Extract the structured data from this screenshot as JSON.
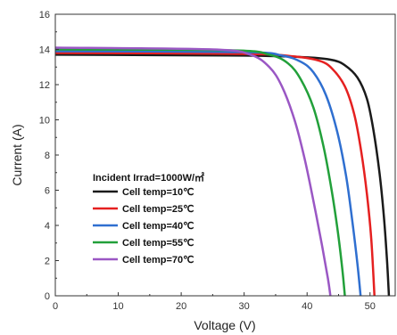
{
  "chart_data": {
    "type": "line",
    "title": "",
    "xlabel": "Voltage (V)",
    "ylabel": "Current (A)",
    "xlim": [
      0,
      54
    ],
    "ylim": [
      0,
      16
    ],
    "xticks": [
      "0",
      "10",
      "20",
      "30",
      "40",
      "50"
    ],
    "yticks": [
      "0",
      "2",
      "4",
      "6",
      "8",
      "10",
      "12",
      "14",
      "16"
    ],
    "legend_title": "Incident Irrad=1000W/㎡",
    "legend_position": "center-left",
    "grid": false,
    "series": [
      {
        "name": "Cell temp=10℃",
        "color": "#1a1a1a",
        "points": [
          [
            0,
            13.7
          ],
          [
            30,
            13.65
          ],
          [
            40,
            13.55
          ],
          [
            44,
            13.4
          ],
          [
            46,
            13.1
          ],
          [
            48,
            12.4
          ],
          [
            49.5,
            11.2
          ],
          [
            50.5,
            9.5
          ],
          [
            51.5,
            7.0
          ],
          [
            52.2,
            4.5
          ],
          [
            52.7,
            2.0
          ],
          [
            53.0,
            0
          ]
        ]
      },
      {
        "name": "Cell temp=25℃",
        "color": "#e52020",
        "points": [
          [
            0,
            13.8
          ],
          [
            30,
            13.75
          ],
          [
            38,
            13.6
          ],
          [
            42,
            13.35
          ],
          [
            44,
            12.9
          ],
          [
            46,
            11.9
          ],
          [
            47.5,
            10.3
          ],
          [
            48.6,
            8.2
          ],
          [
            49.5,
            5.8
          ],
          [
            50.2,
            3.2
          ],
          [
            50.7,
            0
          ]
        ]
      },
      {
        "name": "Cell temp=40℃",
        "color": "#2f6fd0",
        "points": [
          [
            0,
            13.9
          ],
          [
            30,
            13.85
          ],
          [
            36,
            13.65
          ],
          [
            39,
            13.3
          ],
          [
            41,
            12.7
          ],
          [
            43,
            11.4
          ],
          [
            44.8,
            9.3
          ],
          [
            46.2,
            6.8
          ],
          [
            47.2,
            4.2
          ],
          [
            48.0,
            1.8
          ],
          [
            48.5,
            0
          ]
        ]
      },
      {
        "name": "Cell temp=55℃",
        "color": "#22a03a",
        "points": [
          [
            0,
            14.0
          ],
          [
            28,
            13.95
          ],
          [
            34,
            13.7
          ],
          [
            37,
            13.2
          ],
          [
            39,
            12.3
          ],
          [
            41,
            10.7
          ],
          [
            42.6,
            8.5
          ],
          [
            43.9,
            6.0
          ],
          [
            44.9,
            3.6
          ],
          [
            45.6,
            1.5
          ],
          [
            46.0,
            0
          ]
        ]
      },
      {
        "name": "Cell temp=70℃",
        "color": "#9a57c4",
        "points": [
          [
            0,
            14.1
          ],
          [
            25,
            14.0
          ],
          [
            31,
            13.7
          ],
          [
            34,
            13.0
          ],
          [
            36,
            11.9
          ],
          [
            38,
            10.0
          ],
          [
            39.6,
            7.8
          ],
          [
            41.0,
            5.4
          ],
          [
            42.3,
            3.0
          ],
          [
            43.3,
            1.0
          ],
          [
            43.7,
            0
          ]
        ]
      }
    ]
  }
}
